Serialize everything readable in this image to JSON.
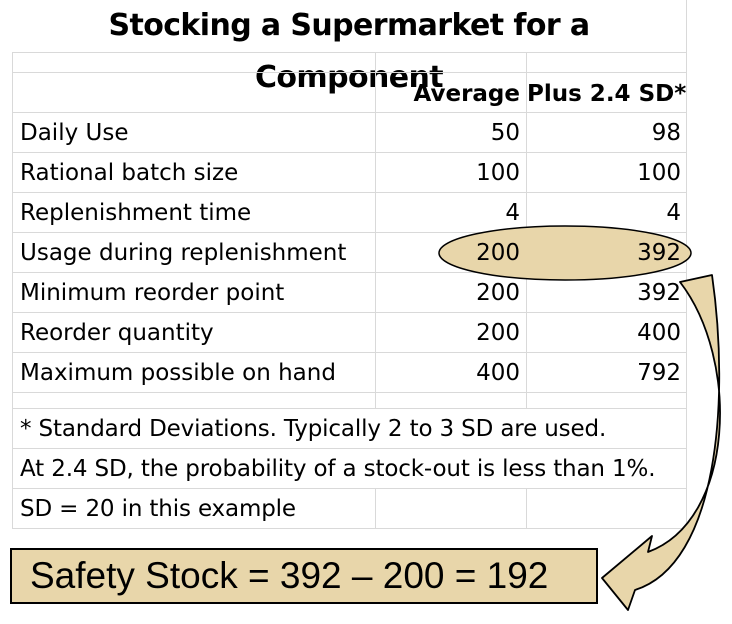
{
  "title": "Stocking a Supermarket for a Component",
  "columns": {
    "average": "Average",
    "plus": "Plus 2.4 SD*"
  },
  "rows": [
    {
      "label": "Daily Use",
      "average": "50",
      "plus": "98"
    },
    {
      "label": "Rational batch size",
      "average": "100",
      "plus": "100"
    },
    {
      "label": "Replenishment time",
      "average": "4",
      "plus": "4"
    },
    {
      "label": "Usage during replenishment",
      "average": "200",
      "plus": "392"
    },
    {
      "label": "Minimum reorder point",
      "average": "200",
      "plus": "392"
    },
    {
      "label": "Reorder quantity",
      "average": "200",
      "plus": "400"
    },
    {
      "label": "Maximum possible on hand",
      "average": "400",
      "plus": "792"
    }
  ],
  "notes": [
    "* Standard Deviations. Typically 2 to 3 SD are used.",
    "At 2.4 SD, the probability of a stock-out is less than 1%.",
    "SD = 20 in this example"
  ],
  "safety_stock": "Safety Stock = 392 – 200 = 192",
  "colors": {
    "highlight": "#e8d6aa",
    "grid": "#d9d9d9"
  }
}
